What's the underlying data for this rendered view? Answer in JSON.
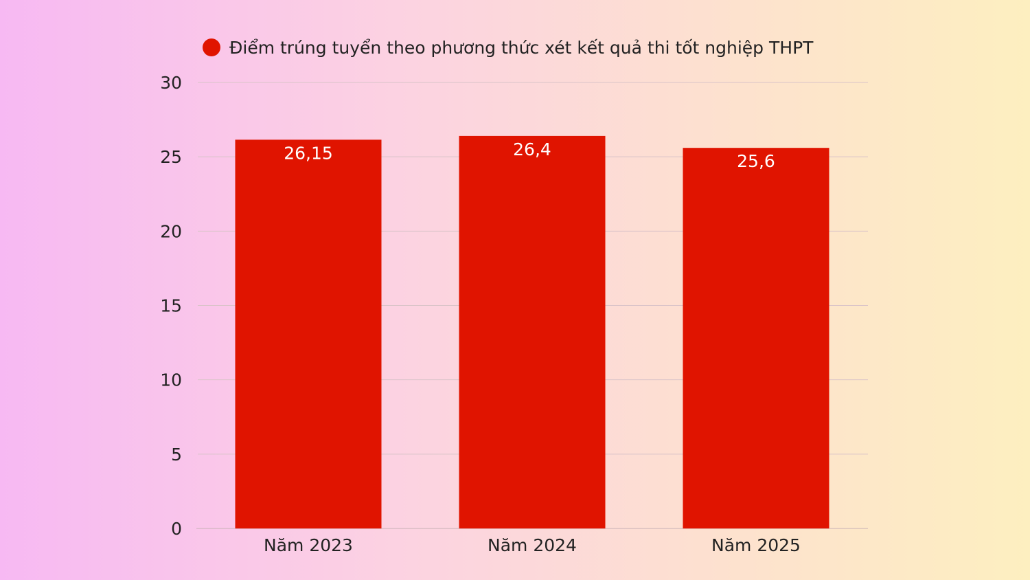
{
  "chart_data": {
    "type": "bar",
    "categories": [
      "Năm 2023",
      "Năm 2024",
      "Năm 2025"
    ],
    "series": [
      {
        "name": "Điểm trúng tuyển theo phương thức xét kết quả thi tốt nghiệp THPT",
        "values": [
          26.15,
          26.4,
          25.6
        ],
        "value_labels": [
          "26,15",
          "26,4",
          "25,6"
        ],
        "color": "#e01400"
      }
    ],
    "yticks": [
      0,
      5,
      10,
      15,
      20,
      25,
      30
    ],
    "ylim": [
      0,
      30
    ],
    "grid": true,
    "legend": "top",
    "title": "",
    "xlabel": "",
    "ylabel": ""
  }
}
